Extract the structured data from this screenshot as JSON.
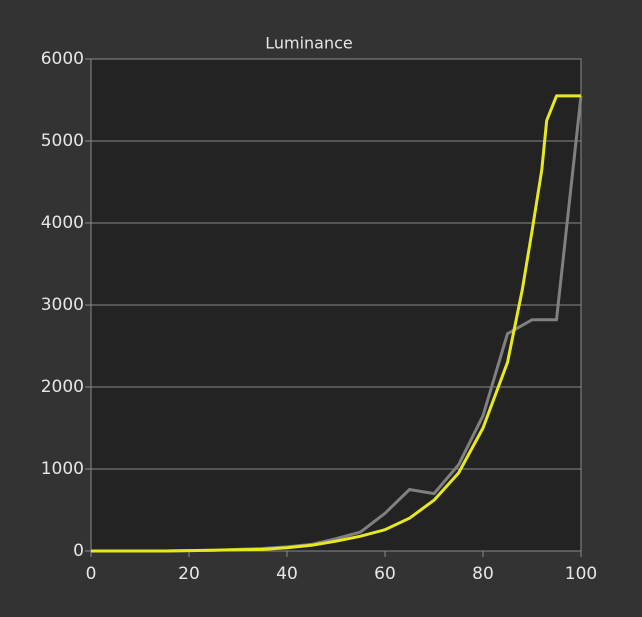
{
  "chart_data": {
    "type": "line",
    "title": "Luminance",
    "series": [
      {
        "color": "#e8e81e",
        "x": [
          0,
          5,
          10,
          15,
          20,
          25,
          30,
          35,
          40,
          45,
          50,
          55,
          60,
          65,
          70,
          75,
          80,
          85,
          88,
          90,
          92,
          93,
          95,
          100
        ],
        "values": [
          0,
          0,
          0,
          0,
          5,
          10,
          15,
          20,
          40,
          70,
          120,
          180,
          260,
          400,
          620,
          950,
          1500,
          2300,
          3180,
          3900,
          4650,
          5250,
          5550,
          5550
        ]
      },
      {
        "color": "#808080",
        "x": [
          0,
          5,
          10,
          15,
          20,
          25,
          30,
          35,
          40,
          45,
          50,
          55,
          60,
          65,
          70,
          75,
          80,
          85,
          90,
          95,
          100
        ],
        "values": [
          0,
          0,
          0,
          0,
          5,
          10,
          20,
          30,
          50,
          80,
          150,
          230,
          460,
          750,
          700,
          1050,
          1650,
          2650,
          2820,
          2820,
          5550
        ]
      }
    ],
    "xlim": [
      0,
      100
    ],
    "xticks": [
      0,
      20,
      40,
      60,
      80,
      100
    ],
    "ylim": [
      0,
      6000
    ],
    "yticks": [
      0,
      1000,
      2000,
      3000,
      4000,
      5000,
      6000
    ],
    "grid": true
  }
}
